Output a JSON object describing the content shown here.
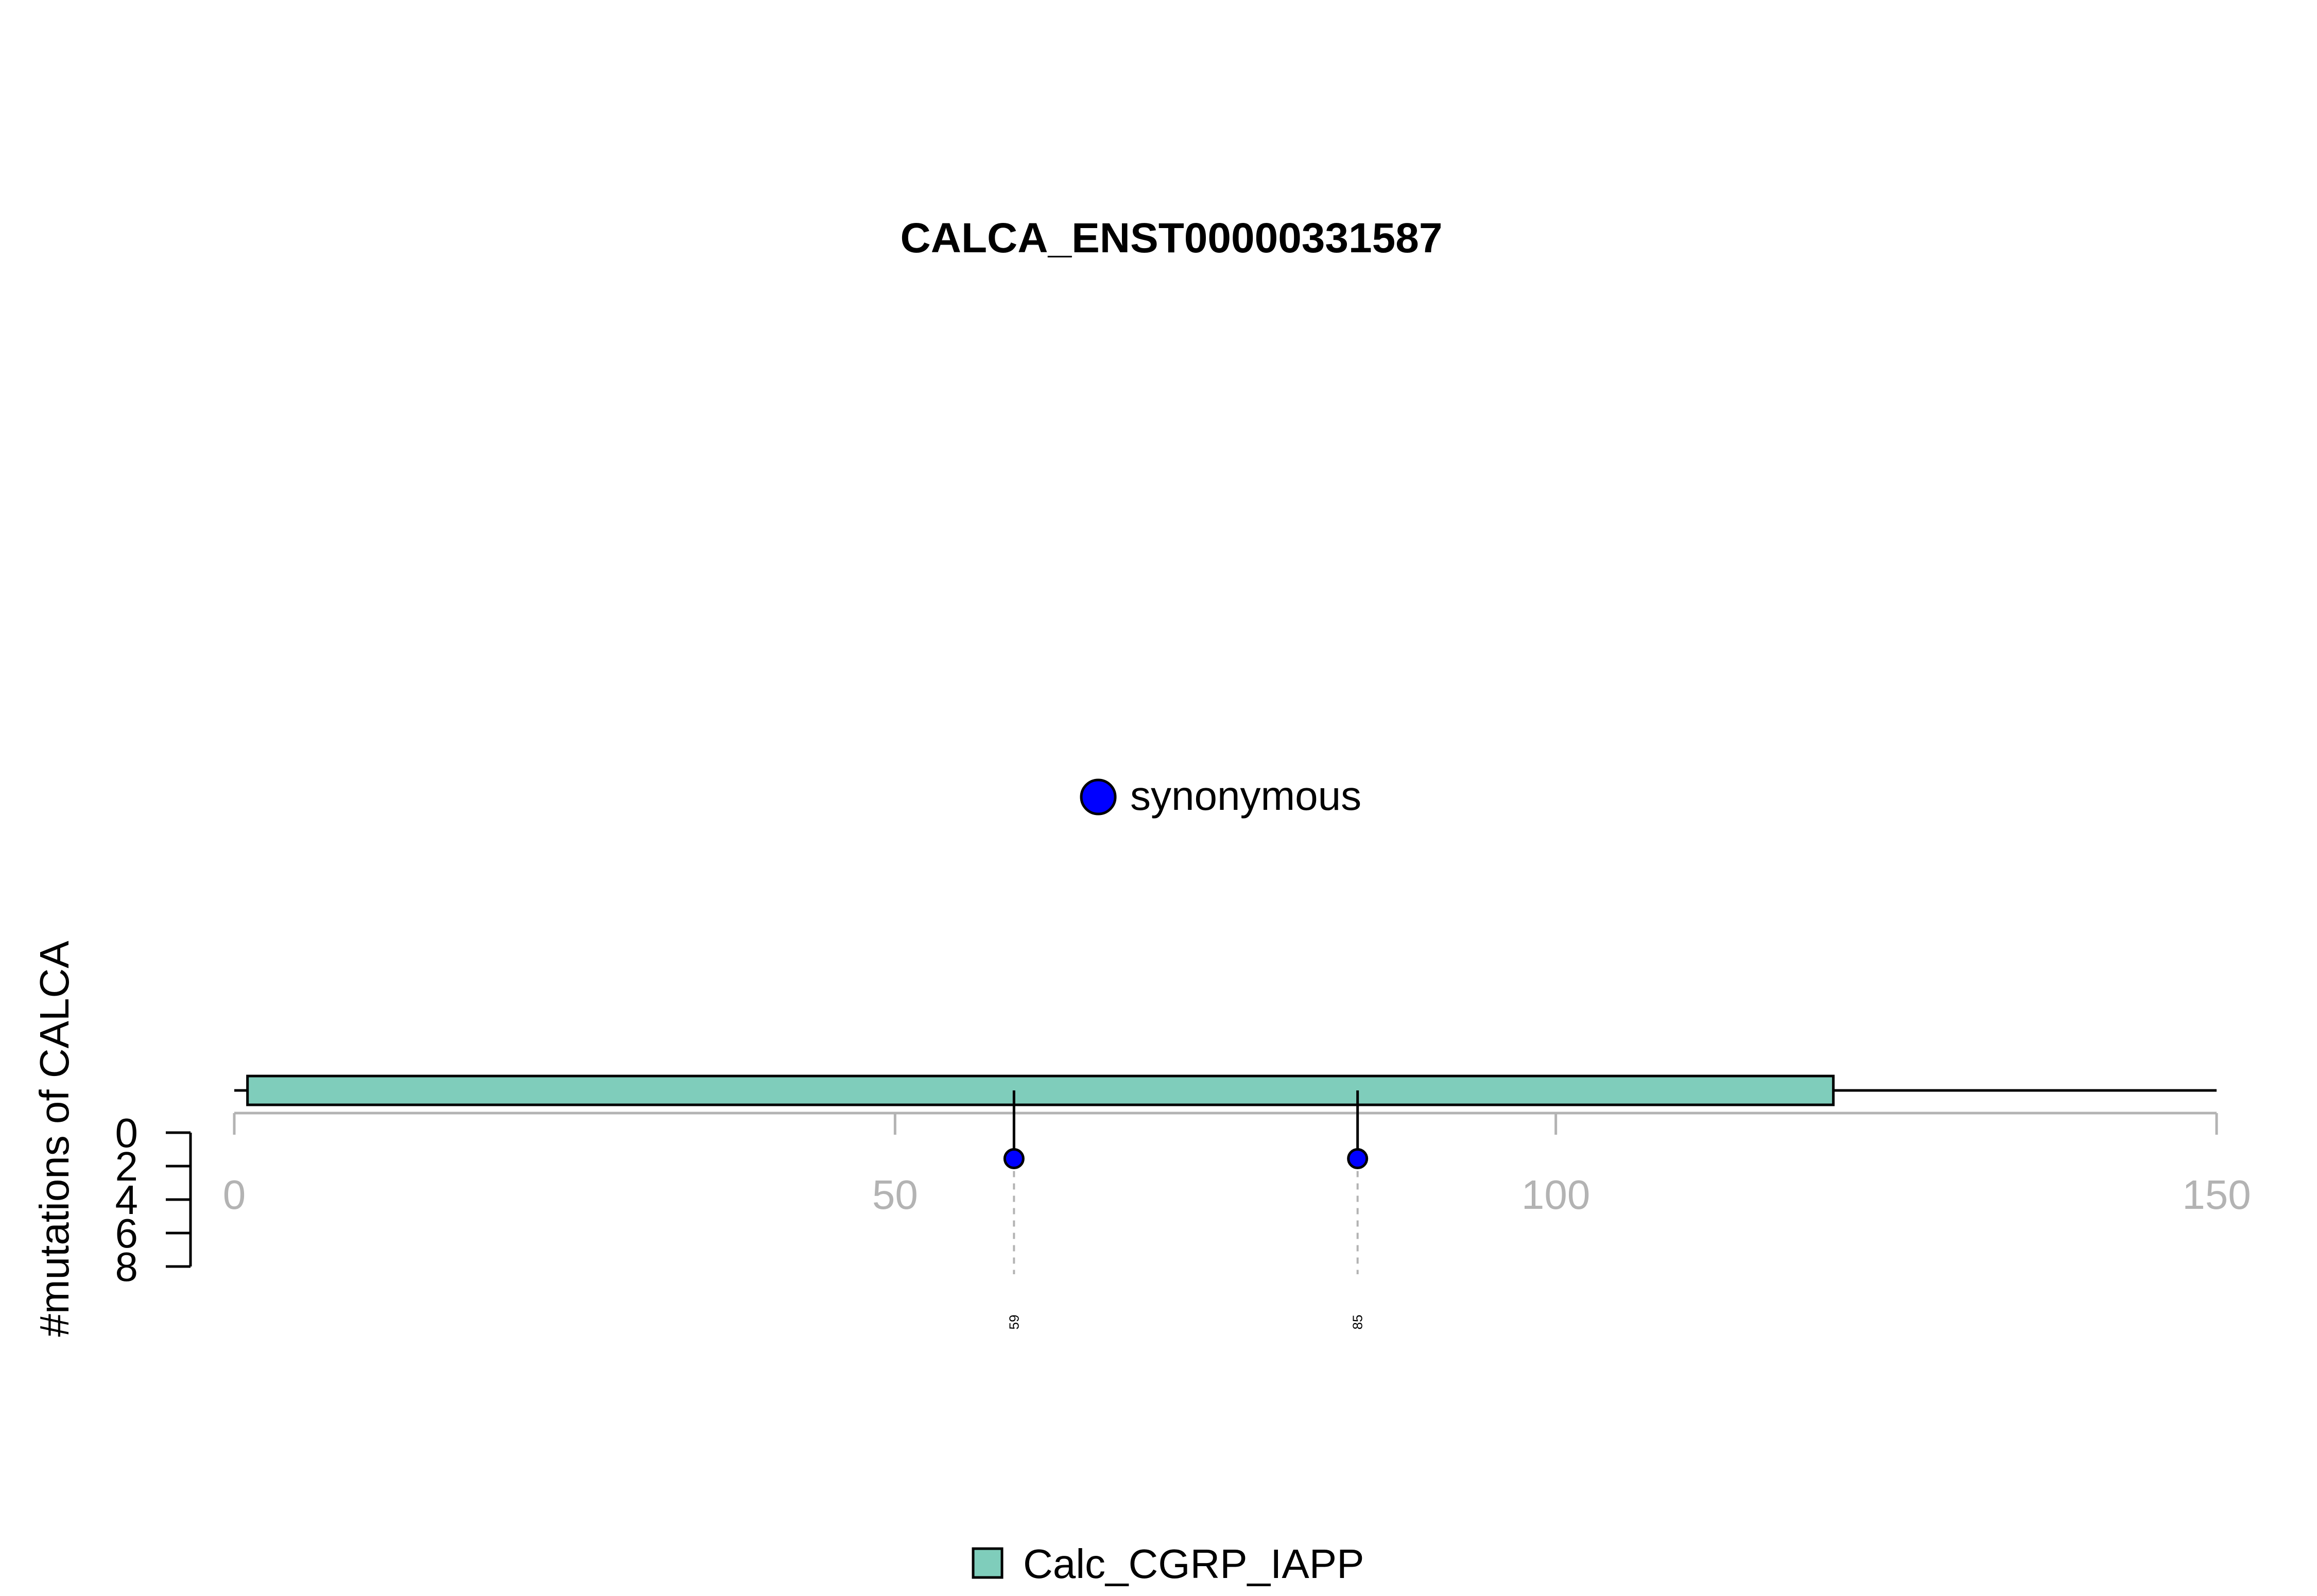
{
  "chart_data": {
    "type": "lollipop",
    "title": "CALCA_ENST00000331587",
    "ylabel": "#mutations of CALCA",
    "xlabel": "",
    "xlim": [
      0,
      150
    ],
    "x_ticks": [
      0,
      50,
      100,
      150
    ],
    "y_ticks": [
      0,
      2,
      4,
      6,
      8
    ],
    "protein_length": 150,
    "domains": [
      {
        "name": "Calc_CGRP_IAPP",
        "start": 1,
        "end": 121,
        "color": "#7FCDBB"
      }
    ],
    "mutations": [
      {
        "position": 59,
        "count": 1,
        "type": "synonymous",
        "label": "59"
      },
      {
        "position": 85,
        "count": 1,
        "type": "synonymous",
        "label": "85"
      }
    ],
    "mutation_legend": [
      {
        "label": "synonymous",
        "color": "#0000FF"
      }
    ],
    "domain_legend": [
      {
        "label": "Calc_CGRP_IAPP",
        "color": "#7FCDBB"
      }
    ]
  }
}
